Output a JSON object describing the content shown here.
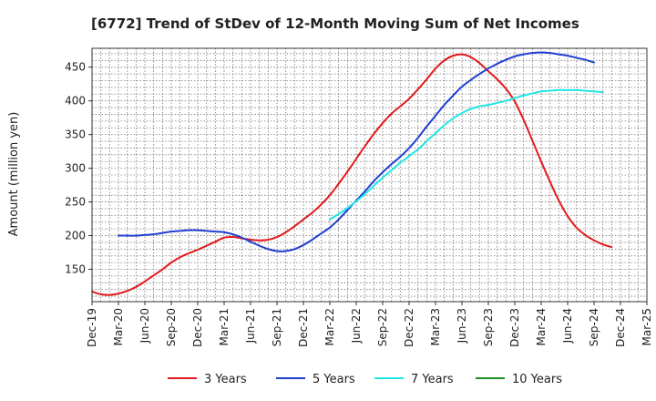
{
  "chart_data": {
    "type": "line",
    "title": "[6772]  Trend of StDev of 12-Month Moving Sum of Net Incomes",
    "xlabel": "",
    "ylabel": "Amount (million yen)",
    "x_ticks": [
      "Dec-19",
      "Mar-20",
      "Jun-20",
      "Sep-20",
      "Dec-20",
      "Mar-21",
      "Jun-21",
      "Sep-21",
      "Dec-21",
      "Mar-22",
      "Jun-22",
      "Sep-22",
      "Dec-22",
      "Mar-23",
      "Jun-23",
      "Sep-23",
      "Dec-23",
      "Mar-24",
      "Jun-24",
      "Sep-24",
      "Dec-24",
      "Mar-25"
    ],
    "y_ticks": [
      150,
      200,
      250,
      300,
      350,
      400,
      450
    ],
    "ylim": [
      102,
      478
    ],
    "grid": true,
    "legend_position": "bottom",
    "series": [
      {
        "name": "3 Years",
        "color": "#e31a1c",
        "start_index": 0,
        "values": [
          117,
          113,
          112,
          114,
          118,
          124,
          132,
          141,
          150,
          160,
          168,
          174,
          179,
          185,
          191,
          197,
          198,
          196,
          194,
          193,
          194,
          198,
          205,
          214,
          224,
          234,
          246,
          260,
          277,
          295,
          314,
          333,
          351,
          367,
          381,
          392,
          403,
          417,
          432,
          448,
          460,
          467,
          469,
          465,
          456,
          444,
          432,
          418,
          399,
          372,
          341,
          310,
          280,
          252,
          229,
          212,
          201,
          193,
          187,
          183
        ],
        "smooth": true
      },
      {
        "name": "5 Years",
        "color": "#1f3fcf",
        "start_index": 3,
        "values": [
          200,
          200,
          200,
          201,
          202,
          204,
          206,
          207,
          208,
          208,
          207,
          206,
          205,
          202,
          197,
          191,
          185,
          180,
          177,
          177,
          180,
          186,
          194,
          203,
          212,
          224,
          238,
          252,
          266,
          281,
          294,
          306,
          317,
          330,
          345,
          362,
          378,
          394,
          408,
          421,
          431,
          440,
          448,
          455,
          461,
          466,
          469,
          471,
          472,
          471,
          469,
          467,
          464,
          461,
          457
        ],
        "smooth": true
      },
      {
        "name": "7 Years",
        "color": "#22e5e5",
        "start_index": 27,
        "values": [
          224,
          232,
          241,
          251,
          262,
          274,
          286,
          297,
          308,
          318,
          328,
          340,
          352,
          364,
          374,
          382,
          388,
          392,
          394,
          397,
          400,
          404,
          408,
          411,
          414,
          415,
          416,
          416,
          416,
          415,
          414,
          413
        ],
        "smooth": true
      },
      {
        "name": "10 Years",
        "color": "#1e8f1e",
        "start_index": 0,
        "values": [],
        "smooth": true
      }
    ]
  }
}
